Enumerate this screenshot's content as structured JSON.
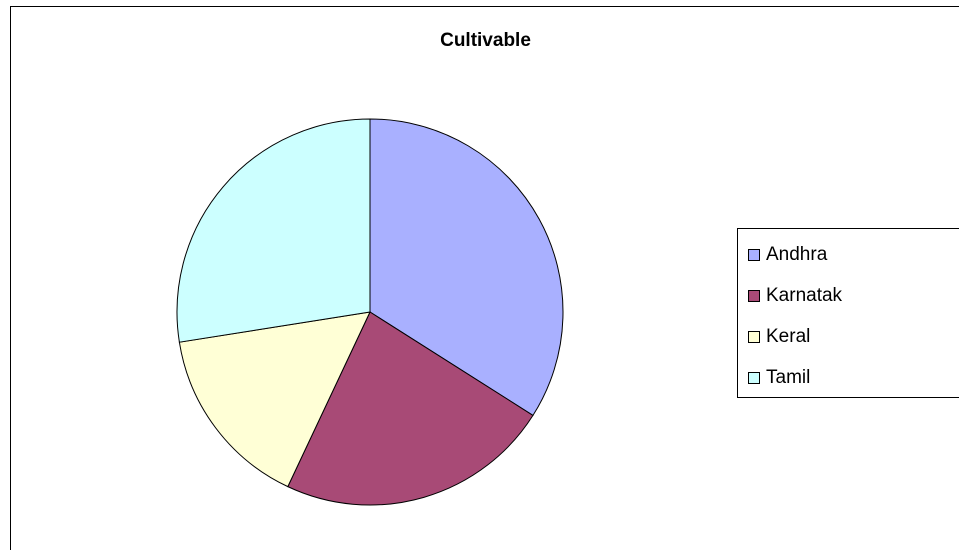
{
  "chart_data": {
    "type": "pie",
    "title": "Cultivable",
    "categories": [
      "Andhra",
      "Karnatak",
      "Keral",
      "Tamil"
    ],
    "values": [
      34,
      23,
      15.5,
      27.5
    ],
    "colors": [
      "#a9b0ff",
      "#a84a76",
      "#ffffd6",
      "#ccffff"
    ],
    "legend_position": "right"
  }
}
